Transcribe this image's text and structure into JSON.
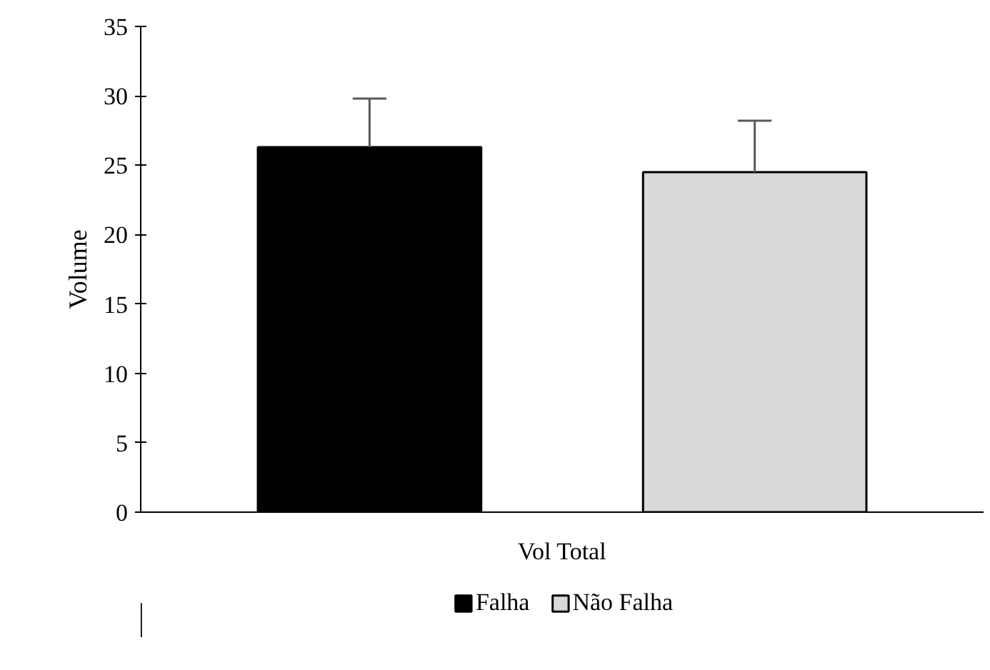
{
  "chart_data": {
    "type": "bar",
    "ylabel": "Volume",
    "categories": [
      "Vol Total"
    ],
    "series": [
      {
        "name": "Falha",
        "color": "#000000",
        "values": [
          26.3
        ],
        "errors": [
          [
            26.3,
            29.8
          ]
        ]
      },
      {
        "name": "Não Falha",
        "color": "#d9d9d9",
        "values": [
          24.5
        ],
        "errors": [
          [
            24.5,
            28.2
          ]
        ]
      }
    ],
    "ylim": [
      0,
      35
    ],
    "yticks": [
      0,
      5,
      10,
      15,
      20,
      25,
      30,
      35
    ],
    "grid": false,
    "legend": "bottom"
  }
}
